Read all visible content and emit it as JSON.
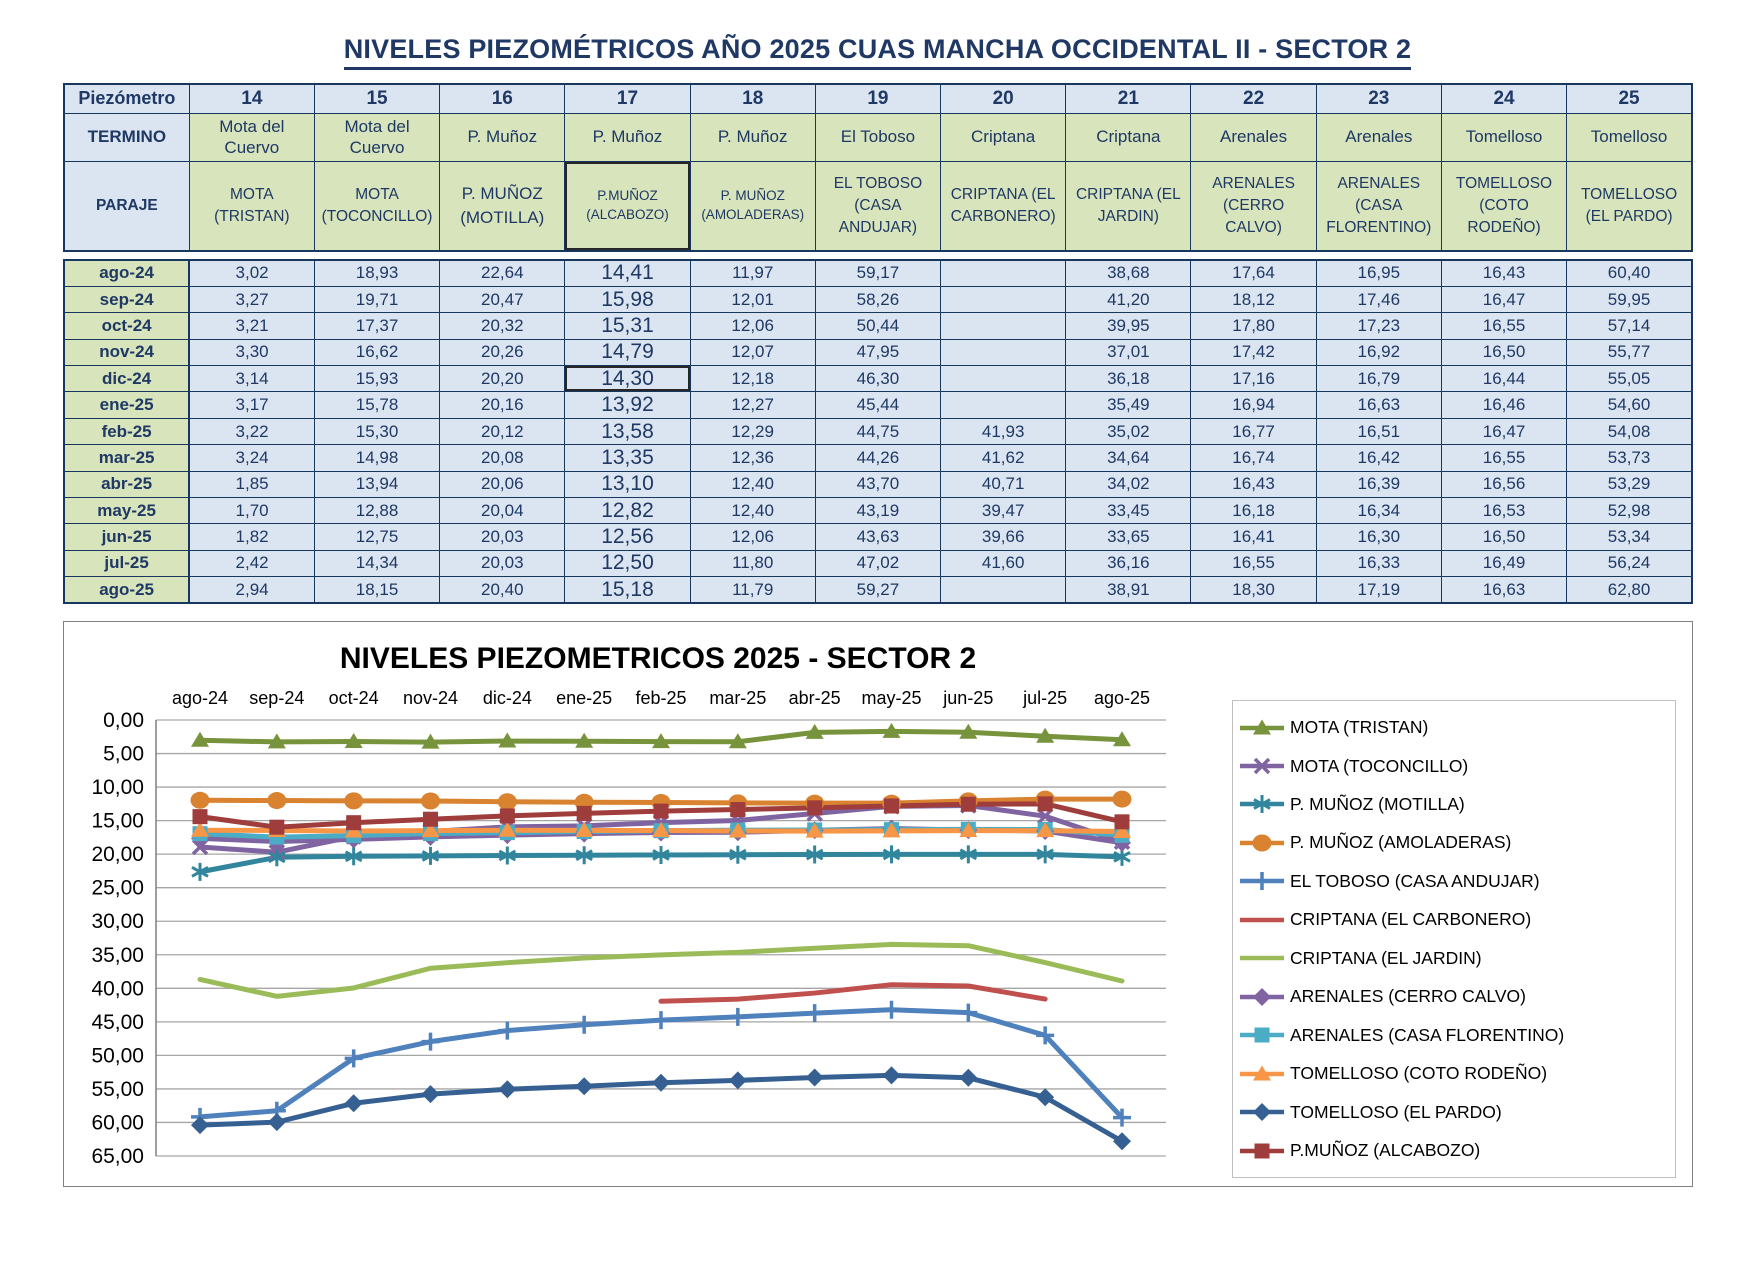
{
  "page_title": "NIVELES PIEZOMÉTRICOS AÑO 2025 CUAS MANCHA OCCIDENTAL II - SECTOR 2",
  "table": {
    "corner_label": "Piezómetro",
    "termino_label": "TERMINO",
    "paraje_label": "PARAJE",
    "columns": [
      {
        "id": "14",
        "termino": "Mota del Cuervo",
        "paraje": "MOTA (TRISTAN)"
      },
      {
        "id": "15",
        "termino": "Mota del Cuervo",
        "paraje": "MOTA (TOCONCILLO)"
      },
      {
        "id": "16",
        "termino": "P. Muñoz",
        "paraje": "P. MUÑOZ (MOTILLA)"
      },
      {
        "id": "17",
        "termino": "P. Muñoz",
        "paraje": "P.MUÑOZ (ALCABOZO)"
      },
      {
        "id": "18",
        "termino": "P. Muñoz",
        "paraje": "P. MUÑOZ (AMOLADERAS)"
      },
      {
        "id": "19",
        "termino": "El Toboso",
        "paraje": "EL TOBOSO (CASA ANDUJAR)"
      },
      {
        "id": "20",
        "termino": "Criptana",
        "paraje": "CRIPTANA (EL CARBONERO)"
      },
      {
        "id": "21",
        "termino": "Criptana",
        "paraje": "CRIPTANA (EL JARDIN)"
      },
      {
        "id": "22",
        "termino": "Arenales",
        "paraje": "ARENALES (CERRO CALVO)"
      },
      {
        "id": "23",
        "termino": "Arenales",
        "paraje": "ARENALES (CASA FLORENTINO)"
      },
      {
        "id": "24",
        "termino": "Tomelloso",
        "paraje": "TOMELLOSO (COTO RODEÑO)"
      },
      {
        "id": "25",
        "termino": "Tomelloso",
        "paraje": "TOMELLOSO (EL PARDO)"
      }
    ],
    "months": [
      "ago-24",
      "sep-24",
      "oct-24",
      "nov-24",
      "dic-24",
      "ene-25",
      "feb-25",
      "mar-25",
      "abr-25",
      "may-25",
      "jun-25",
      "jul-25",
      "ago-25"
    ],
    "rows": [
      [
        "3,02",
        "18,93",
        "22,64",
        "14,41",
        "11,97",
        "59,17",
        "",
        "38,68",
        "17,64",
        "16,95",
        "16,43",
        "60,40"
      ],
      [
        "3,27",
        "19,71",
        "20,47",
        "15,98",
        "12,01",
        "58,26",
        "",
        "41,20",
        "18,12",
        "17,46",
        "16,47",
        "59,95"
      ],
      [
        "3,21",
        "17,37",
        "20,32",
        "15,31",
        "12,06",
        "50,44",
        "",
        "39,95",
        "17,80",
        "17,23",
        "16,55",
        "57,14"
      ],
      [
        "3,30",
        "16,62",
        "20,26",
        "14,79",
        "12,07",
        "47,95",
        "",
        "37,01",
        "17,42",
        "16,92",
        "16,50",
        "55,77"
      ],
      [
        "3,14",
        "15,93",
        "20,20",
        "14,30",
        "12,18",
        "46,30",
        "",
        "36,18",
        "17,16",
        "16,79",
        "16,44",
        "55,05"
      ],
      [
        "3,17",
        "15,78",
        "20,16",
        "13,92",
        "12,27",
        "45,44",
        "",
        "35,49",
        "16,94",
        "16,63",
        "16,46",
        "54,60"
      ],
      [
        "3,22",
        "15,30",
        "20,12",
        "13,58",
        "12,29",
        "44,75",
        "41,93",
        "35,02",
        "16,77",
        "16,51",
        "16,47",
        "54,08"
      ],
      [
        "3,24",
        "14,98",
        "20,08",
        "13,35",
        "12,36",
        "44,26",
        "41,62",
        "34,64",
        "16,74",
        "16,42",
        "16,55",
        "53,73"
      ],
      [
        "1,85",
        "13,94",
        "20,06",
        "13,10",
        "12,40",
        "43,70",
        "40,71",
        "34,02",
        "16,43",
        "16,39",
        "16,56",
        "53,29"
      ],
      [
        "1,70",
        "12,88",
        "20,04",
        "12,82",
        "12,40",
        "43,19",
        "39,47",
        "33,45",
        "16,18",
        "16,34",
        "16,53",
        "52,98"
      ],
      [
        "1,82",
        "12,75",
        "20,03",
        "12,56",
        "12,06",
        "43,63",
        "39,66",
        "33,65",
        "16,41",
        "16,30",
        "16,50",
        "53,34"
      ],
      [
        "2,42",
        "14,34",
        "20,03",
        "12,50",
        "11,80",
        "47,02",
        "41,60",
        "36,16",
        "16,55",
        "16,33",
        "16,49",
        "56,24"
      ],
      [
        "2,94",
        "18,15",
        "20,40",
        "15,18",
        "11,79",
        "59,27",
        "",
        "38,91",
        "18,30",
        "17,19",
        "16,63",
        "62,80"
      ]
    ]
  },
  "chart_data": {
    "type": "line",
    "title": "NIVELES PIEZOMETRICOS 2025 - SECTOR 2",
    "x": [
      "ago-24",
      "sep-24",
      "oct-24",
      "nov-24",
      "dic-24",
      "ene-25",
      "feb-25",
      "mar-25",
      "abr-25",
      "may-25",
      "jun-25",
      "jul-25",
      "ago-25"
    ],
    "ylim": [
      0,
      65
    ],
    "y_inverted": true,
    "grid": true,
    "legend_position": "right",
    "y_ticks": [
      "0,00",
      "5,00",
      "10,00",
      "15,00",
      "20,00",
      "25,00",
      "30,00",
      "35,00",
      "40,00",
      "45,00",
      "50,00",
      "55,00",
      "60,00",
      "65,00"
    ],
    "series": [
      {
        "name": "MOTA (TRISTAN)",
        "color": "#77933C",
        "marker": "triangle",
        "values": [
          3.02,
          3.27,
          3.21,
          3.3,
          3.14,
          3.17,
          3.22,
          3.24,
          1.85,
          1.7,
          1.82,
          2.42,
          2.94
        ]
      },
      {
        "name": "MOTA (TOCONCILLO)",
        "color": "#8064A2",
        "marker": "x",
        "values": [
          18.93,
          19.71,
          17.37,
          16.62,
          15.93,
          15.78,
          15.3,
          14.98,
          13.94,
          12.88,
          12.75,
          14.34,
          18.15
        ]
      },
      {
        "name": "P. MUÑOZ (MOTILLA)",
        "color": "#31859C",
        "marker": "asterisk",
        "values": [
          22.64,
          20.47,
          20.32,
          20.26,
          20.2,
          20.16,
          20.12,
          20.08,
          20.06,
          20.04,
          20.03,
          20.03,
          20.4
        ]
      },
      {
        "name": "P. MUÑOZ (AMOLADERAS)",
        "color": "#D9822F",
        "marker": "circle",
        "values": [
          11.97,
          12.01,
          12.06,
          12.07,
          12.18,
          12.27,
          12.29,
          12.36,
          12.4,
          12.4,
          12.06,
          11.8,
          11.79
        ]
      },
      {
        "name": "EL TOBOSO (CASA ANDUJAR)",
        "color": "#4F81BD",
        "marker": "plus",
        "values": [
          59.17,
          58.26,
          50.44,
          47.95,
          46.3,
          45.44,
          44.75,
          44.26,
          43.7,
          43.19,
          43.63,
          47.02,
          59.27
        ]
      },
      {
        "name": "CRIPTANA (EL CARBONERO)",
        "color": "#C0504D",
        "marker": "none",
        "values": [
          null,
          null,
          null,
          null,
          null,
          null,
          41.93,
          41.62,
          40.71,
          39.47,
          39.66,
          41.6,
          null
        ]
      },
      {
        "name": "CRIPTANA (EL JARDIN)",
        "color": "#9BBB59",
        "marker": "none",
        "values": [
          38.68,
          41.2,
          39.95,
          37.01,
          36.18,
          35.49,
          35.02,
          34.64,
          34.02,
          33.45,
          33.65,
          36.16,
          38.91
        ]
      },
      {
        "name": "ARENALES (CERRO CALVO)",
        "color": "#8064A2",
        "marker": "diamond",
        "values": [
          17.64,
          18.12,
          17.8,
          17.42,
          17.16,
          16.94,
          16.77,
          16.74,
          16.43,
          16.18,
          16.41,
          16.55,
          18.3
        ]
      },
      {
        "name": "ARENALES (CASA FLORENTINO)",
        "color": "#4BACC6",
        "marker": "square",
        "values": [
          16.95,
          17.46,
          17.23,
          16.92,
          16.79,
          16.63,
          16.51,
          16.42,
          16.39,
          16.34,
          16.3,
          16.33,
          17.19
        ]
      },
      {
        "name": "TOMELLOSO (COTO RODEÑO)",
        "color": "#F79646",
        "marker": "triangle",
        "values": [
          16.43,
          16.47,
          16.55,
          16.5,
          16.44,
          16.46,
          16.47,
          16.55,
          16.56,
          16.53,
          16.5,
          16.49,
          16.63
        ]
      },
      {
        "name": "TOMELLOSO (EL PARDO)",
        "color": "#376092",
        "marker": "diamond",
        "values": [
          60.4,
          59.95,
          57.14,
          55.77,
          55.05,
          54.6,
          54.08,
          53.73,
          53.29,
          52.98,
          53.34,
          56.24,
          62.8
        ]
      },
      {
        "name": "P.MUÑOZ (ALCABOZO)",
        "color": "#9E3D3B",
        "marker": "square",
        "values": [
          14.41,
          15.98,
          15.31,
          14.79,
          14.3,
          13.92,
          13.58,
          13.35,
          13.1,
          12.82,
          12.56,
          12.5,
          15.18
        ]
      }
    ]
  }
}
